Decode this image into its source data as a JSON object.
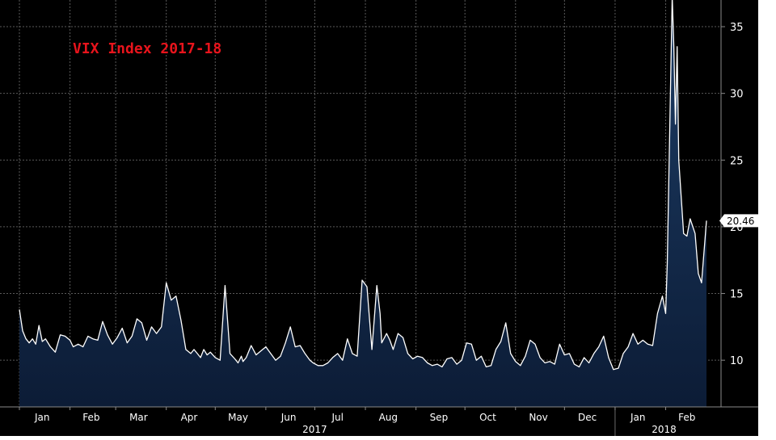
{
  "chart_data": {
    "type": "area",
    "title": "VIX Index 2017-18",
    "xlabel": "",
    "ylabel": "",
    "ylim": [
      6.5,
      37
    ],
    "y_ticks": [
      10,
      15,
      20,
      25,
      30,
      35
    ],
    "grid": true,
    "x_range": [
      "2017-01-01",
      "2018-02-26"
    ],
    "month_ticks": [
      {
        "label": "Jan",
        "date": "2017-01-15"
      },
      {
        "label": "Feb",
        "date": "2017-02-14"
      },
      {
        "label": "Mar",
        "date": "2017-03-15"
      },
      {
        "label": "Apr",
        "date": "2017-04-15"
      },
      {
        "label": "May",
        "date": "2017-05-15"
      },
      {
        "label": "Jun",
        "date": "2017-06-15"
      },
      {
        "label": "Jul",
        "date": "2017-07-15"
      },
      {
        "label": "Aug",
        "date": "2017-08-15"
      },
      {
        "label": "Sep",
        "date": "2017-09-15"
      },
      {
        "label": "Oct",
        "date": "2017-10-15"
      },
      {
        "label": "Nov",
        "date": "2017-11-15"
      },
      {
        "label": "Dec",
        "date": "2017-12-15"
      },
      {
        "label": "Jan",
        "date": "2018-01-15"
      },
      {
        "label": "Feb",
        "date": "2018-02-14"
      }
    ],
    "year_labels": [
      {
        "label": "2017",
        "date": "2017-07-01"
      },
      {
        "label": "2018",
        "date": "2018-01-31"
      }
    ],
    "last_value_label": "20.46",
    "colors": {
      "background": "#000000",
      "grid": "#5a5a5a",
      "line": "#ffffff",
      "fill_top": "#1d3d66",
      "fill_bottom": "#0c1c36",
      "title": "#e8141c",
      "axis_text": "#ffffff"
    },
    "series": [
      {
        "x": [
          "2017-01-01",
          "2017-01-03",
          "2017-01-05",
          "2017-01-07",
          "2017-01-09",
          "2017-01-11",
          "2017-01-13",
          "2017-01-15",
          "2017-01-17",
          "2017-01-20",
          "2017-01-23",
          "2017-01-26",
          "2017-01-29",
          "2017-02-01",
          "2017-02-03",
          "2017-02-06",
          "2017-02-09",
          "2017-02-12",
          "2017-02-15",
          "2017-02-18",
          "2017-02-21",
          "2017-02-24",
          "2017-02-27",
          "2017-03-02",
          "2017-03-05",
          "2017-03-08",
          "2017-03-11",
          "2017-03-14",
          "2017-03-17",
          "2017-03-20",
          "2017-03-23",
          "2017-03-26",
          "2017-03-29",
          "2017-04-01",
          "2017-04-04",
          "2017-04-07",
          "2017-04-10",
          "2017-04-13",
          "2017-04-16",
          "2017-04-18",
          "2017-04-20",
          "2017-04-22",
          "2017-04-24",
          "2017-04-26",
          "2017-04-28",
          "2017-05-01",
          "2017-05-04",
          "2017-05-07",
          "2017-05-10",
          "2017-05-13",
          "2017-05-15",
          "2017-05-17",
          "2017-05-18",
          "2017-05-20",
          "2017-05-23",
          "2017-05-26",
          "2017-05-29",
          "2017-06-01",
          "2017-06-04",
          "2017-06-07",
          "2017-06-10",
          "2017-06-13",
          "2017-06-16",
          "2017-06-19",
          "2017-06-22",
          "2017-06-25",
          "2017-06-28",
          "2017-06-30",
          "2017-07-03",
          "2017-07-06",
          "2017-07-09",
          "2017-07-12",
          "2017-07-15",
          "2017-07-18",
          "2017-07-21",
          "2017-07-24",
          "2017-07-27",
          "2017-07-30",
          "2017-08-02",
          "2017-08-05",
          "2017-08-08",
          "2017-08-10",
          "2017-08-11",
          "2017-08-14",
          "2017-08-16",
          "2017-08-18",
          "2017-08-21",
          "2017-08-24",
          "2017-08-27",
          "2017-08-30",
          "2017-09-02",
          "2017-09-05",
          "2017-09-08",
          "2017-09-11",
          "2017-09-14",
          "2017-09-17",
          "2017-09-20",
          "2017-09-23",
          "2017-09-26",
          "2017-09-29",
          "2017-10-02",
          "2017-10-05",
          "2017-10-08",
          "2017-10-11",
          "2017-10-14",
          "2017-10-17",
          "2017-10-20",
          "2017-10-23",
          "2017-10-26",
          "2017-10-29",
          "2017-11-01",
          "2017-11-04",
          "2017-11-07",
          "2017-11-10",
          "2017-11-13",
          "2017-11-16",
          "2017-11-19",
          "2017-11-22",
          "2017-11-25",
          "2017-11-28",
          "2017-12-01",
          "2017-12-04",
          "2017-12-07",
          "2017-12-10",
          "2017-12-13",
          "2017-12-16",
          "2017-12-19",
          "2017-12-22",
          "2017-12-25",
          "2017-12-28",
          "2017-12-31",
          "2018-01-03",
          "2018-01-06",
          "2018-01-09",
          "2018-01-12",
          "2018-01-15",
          "2018-01-18",
          "2018-01-21",
          "2018-01-24",
          "2018-01-27",
          "2018-01-30",
          "2018-02-01",
          "2018-02-02",
          "2018-02-05",
          "2018-02-06",
          "2018-02-07",
          "2018-02-08",
          "2018-02-09",
          "2018-02-12",
          "2018-02-14",
          "2018-02-16",
          "2018-02-19",
          "2018-02-21",
          "2018-02-23",
          "2018-02-26"
        ],
        "values": [
          13.8,
          12.2,
          11.6,
          11.3,
          11.6,
          11.2,
          12.6,
          11.4,
          11.6,
          11.0,
          10.6,
          11.9,
          11.8,
          11.5,
          11.0,
          11.2,
          11.0,
          11.8,
          11.6,
          11.5,
          12.9,
          11.9,
          11.2,
          11.7,
          12.4,
          11.3,
          11.8,
          13.1,
          12.8,
          11.5,
          12.5,
          12.0,
          12.5,
          15.8,
          14.5,
          14.8,
          13.0,
          10.8,
          10.5,
          10.8,
          10.5,
          10.2,
          10.8,
          10.4,
          10.6,
          10.2,
          10.0,
          15.6,
          10.5,
          10.1,
          9.8,
          10.3,
          9.9,
          10.2,
          11.1,
          10.4,
          10.7,
          11.0,
          10.5,
          10.0,
          10.3,
          11.3,
          12.5,
          11.0,
          11.1,
          10.5,
          10.0,
          9.8,
          9.6,
          9.6,
          9.8,
          10.2,
          10.5,
          10.0,
          11.6,
          10.5,
          10.3,
          16.0,
          15.5,
          10.8,
          15.6,
          13.5,
          11.3,
          12.0,
          11.5,
          10.8,
          12.0,
          11.7,
          10.5,
          10.1,
          10.3,
          10.2,
          9.8,
          9.6,
          9.7,
          9.5,
          10.1,
          10.2,
          9.7,
          10.0,
          11.3,
          11.2,
          10.0,
          10.3,
          9.5,
          9.6,
          10.8,
          11.4,
          12.8,
          10.5,
          9.9,
          9.6,
          10.3,
          11.5,
          11.2,
          10.2,
          9.8,
          9.9,
          9.7,
          11.2,
          10.4,
          10.5,
          9.7,
          9.5,
          10.2,
          9.8,
          10.5,
          11.0,
          11.8,
          10.2,
          9.3,
          9.4,
          10.5,
          11.0,
          12.0,
          11.2,
          11.5,
          11.2,
          11.1,
          13.5,
          14.8,
          13.5,
          17.3,
          37.3,
          33.5,
          27.7,
          33.5,
          25.0,
          19.5,
          19.3,
          20.6,
          19.5,
          16.5,
          15.8,
          20.46
        ]
      }
    ]
  }
}
